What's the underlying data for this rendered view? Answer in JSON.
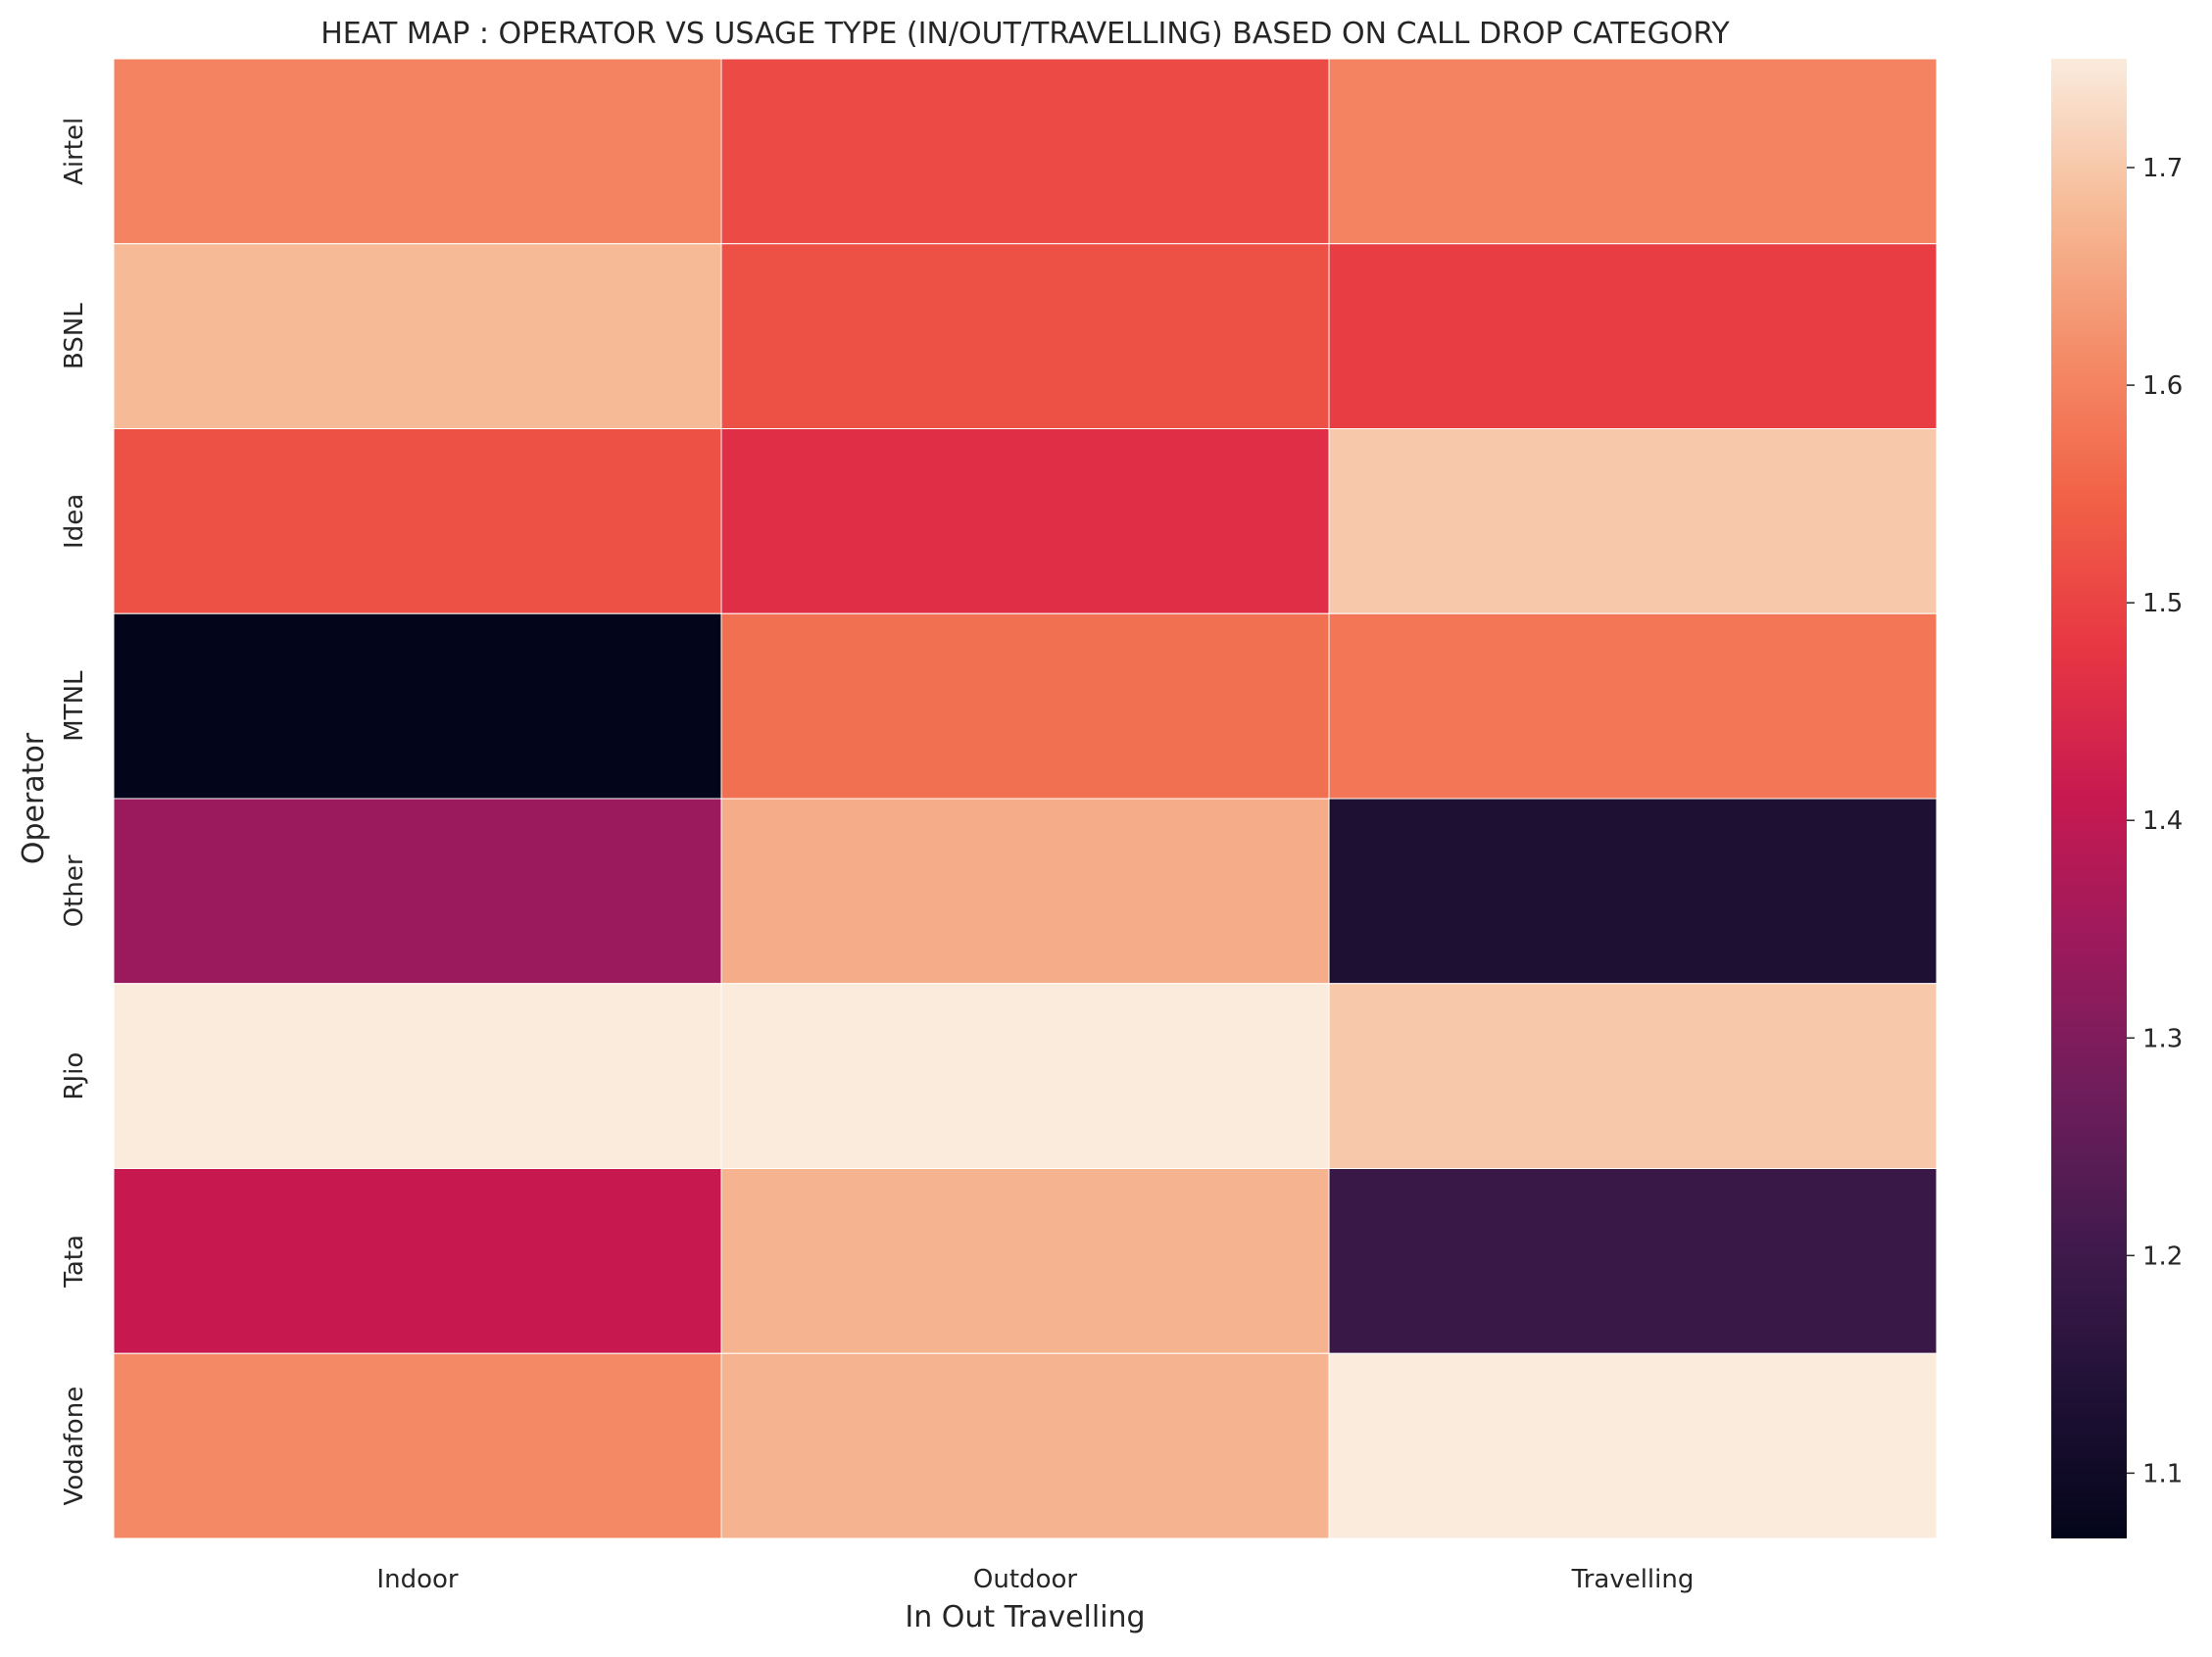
{
  "chart_data": {
    "type": "heatmap",
    "title": "HEAT MAP : OPERATOR VS USAGE TYPE (IN/OUT/TRAVELLING) BASED ON CALL DROP CATEGORY",
    "xlabel": "In Out Travelling",
    "ylabel": "Operator",
    "x_categories": [
      "Indoor",
      "Outdoor",
      "Travelling"
    ],
    "y_categories": [
      "Airtel",
      "BSNL",
      "Idea",
      "MTNL",
      "Other",
      "RJio",
      "Tata",
      "Vodafone"
    ],
    "values": [
      [
        1.6,
        1.51,
        1.6
      ],
      [
        1.68,
        1.52,
        1.49
      ],
      [
        1.52,
        1.46,
        1.7
      ],
      [
        1.07,
        1.57,
        1.58
      ],
      [
        1.34,
        1.66,
        1.13
      ],
      [
        1.75,
        1.75,
        1.7
      ],
      [
        1.41,
        1.67,
        1.19
      ],
      [
        1.61,
        1.67,
        1.75
      ]
    ],
    "colorbar": {
      "colormap": "rocket",
      "range": [
        1.07,
        1.75
      ],
      "ticks": [
        "1.1",
        "1.2",
        "1.3",
        "1.4",
        "1.5",
        "1.6",
        "1.7"
      ]
    },
    "grid": false
  }
}
